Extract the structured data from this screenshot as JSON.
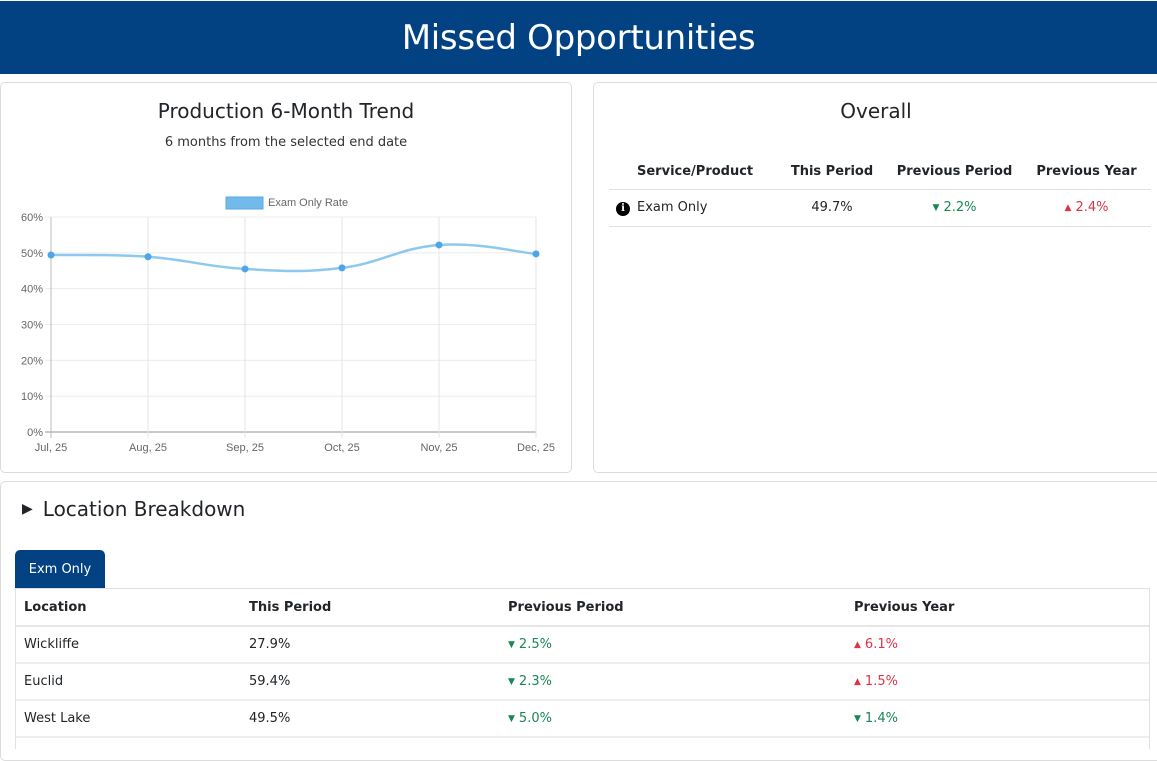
{
  "header": {
    "title": "Missed Opportunities"
  },
  "trend": {
    "title": "Production 6-Month Trend",
    "subtitle": "6 months from the selected end date"
  },
  "chart_data": {
    "type": "line",
    "title": "",
    "xlabel": "",
    "ylabel": "",
    "categories": [
      "Jul, 25",
      "Aug, 25",
      "Sep, 25",
      "Oct, 25",
      "Nov, 25",
      "Dec, 25"
    ],
    "series": [
      {
        "name": "Exam Only Rate",
        "values": [
          49.4,
          48.9,
          45.5,
          45.8,
          52.2,
          49.7
        ],
        "color": "#72b9ec"
      }
    ],
    "ylim": [
      0,
      60
    ],
    "yticks": [
      "0%",
      "10%",
      "20%",
      "30%",
      "40%",
      "50%",
      "60%"
    ],
    "grid": true,
    "legend": "top-center"
  },
  "overall": {
    "title": "Overall",
    "columns": [
      "Service/Product",
      "This Period",
      "Previous Period",
      "Previous Year"
    ],
    "rows": [
      {
        "icon": "info-icon",
        "service": "Exam Only",
        "this_period": "49.7%",
        "prev_period": {
          "dir": "down",
          "value": "2.2%"
        },
        "prev_year": {
          "dir": "up",
          "value": "2.4%"
        }
      }
    ]
  },
  "location": {
    "title": "Location Breakdown",
    "tab": "Exm Only",
    "columns": [
      "Location",
      "This Period",
      "Previous Period",
      "Previous Year"
    ],
    "rows": [
      {
        "location": "Wickliffe",
        "this_period": "27.9%",
        "prev_period": {
          "dir": "down",
          "value": "2.5%"
        },
        "prev_year": {
          "dir": "up",
          "value": "6.1%"
        }
      },
      {
        "location": "Euclid",
        "this_period": "59.4%",
        "prev_period": {
          "dir": "down",
          "value": "2.3%"
        },
        "prev_year": {
          "dir": "up",
          "value": "1.5%"
        }
      },
      {
        "location": "West Lake",
        "this_period": "49.5%",
        "prev_period": {
          "dir": "down",
          "value": "5.0%"
        },
        "prev_year": {
          "dir": "down",
          "value": "1.4%"
        }
      }
    ]
  },
  "colors": {
    "brand": "#024282",
    "up": "#dc3545",
    "down": "#198754"
  }
}
